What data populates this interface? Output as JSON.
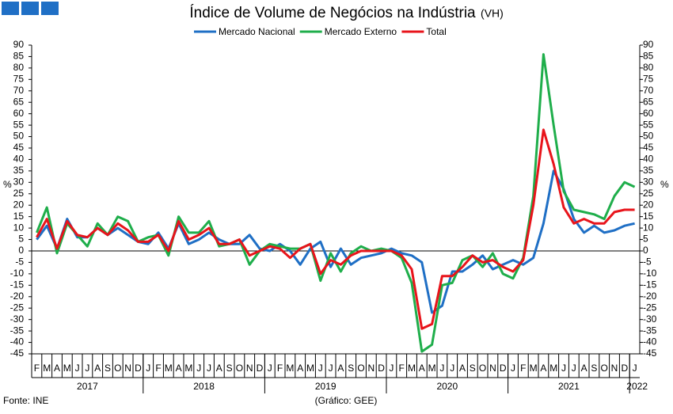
{
  "chart_data": {
    "type": "line",
    "title": "Índice de Volume de Negócios na Indústria",
    "subtitle": "(VH)",
    "y_label": "%",
    "y2_label": "%",
    "source": "Fonte: INE",
    "credit": "(Gráfico: GEE)",
    "categories": [
      "F",
      "M",
      "A",
      "M",
      "J",
      "J",
      "A",
      "S",
      "O",
      "N",
      "D",
      "J",
      "F",
      "M",
      "A",
      "M",
      "J",
      "J",
      "A",
      "S",
      "O",
      "N",
      "D",
      "J",
      "F",
      "M",
      "A",
      "M",
      "J",
      "J",
      "A",
      "S",
      "O",
      "N",
      "D",
      "J",
      "F",
      "M",
      "A",
      "M",
      "J",
      "J",
      "A",
      "S",
      "O",
      "N",
      "D",
      "J",
      "F",
      "M",
      "A",
      "M",
      "J",
      "J",
      "A",
      "S",
      "O",
      "N",
      "D",
      "J"
    ],
    "years": [
      "2017",
      "2018",
      "2019",
      "2020",
      "2021",
      "2022"
    ],
    "series": [
      {
        "name": "Mercado Nacional",
        "color": "#1f6fc5",
        "values": [
          5,
          11,
          1,
          14,
          6,
          6,
          10,
          7,
          10,
          7,
          4,
          3,
          8,
          1,
          12,
          3,
          5,
          8,
          5,
          3,
          3,
          7,
          1,
          0,
          3,
          0,
          -6,
          1,
          4,
          -7,
          1,
          -6,
          -3,
          -2,
          -1,
          1,
          -1,
          -2,
          -5,
          -27,
          -24,
          -9,
          -9,
          -6,
          -2,
          -8,
          -6,
          -4,
          -6,
          -3,
          12,
          35,
          27,
          14,
          8,
          11,
          8,
          9,
          11,
          12
        ]
      },
      {
        "name": "Mercado Externo",
        "color": "#1fae4b",
        "values": [
          8,
          19,
          -1,
          12,
          7,
          2,
          12,
          7,
          15,
          13,
          4,
          6,
          7,
          -2,
          15,
          8,
          8,
          13,
          2,
          3,
          5,
          -6,
          0,
          3,
          2,
          1,
          1,
          3,
          -13,
          -1,
          -9,
          -1,
          2,
          0,
          1,
          0,
          -3,
          -14,
          -44,
          -41,
          -15,
          -14,
          -4,
          -2,
          -7,
          -1,
          -10,
          -12,
          -3,
          24,
          86,
          55,
          26,
          18,
          17,
          16,
          14,
          24,
          30,
          28
        ]
      },
      {
        "name": "Total",
        "color": "#e8141b",
        "values": [
          6,
          14,
          1,
          13,
          7,
          6,
          10,
          7,
          12,
          9,
          4,
          4,
          7,
          0,
          13,
          5,
          7,
          10,
          3,
          3,
          5,
          -2,
          0,
          2,
          1,
          -3,
          1,
          3,
          -10,
          -4,
          -6,
          -2,
          0,
          0,
          0,
          0,
          -2,
          -8,
          -34,
          -32,
          -11,
          -11,
          -7,
          -2,
          -5,
          -4,
          -7,
          -9,
          -4,
          20,
          53,
          38,
          19,
          12,
          14,
          12,
          12,
          17,
          18,
          18
        ]
      }
    ],
    "ylim": [
      -45,
      90
    ],
    "yticks": [
      -45,
      -40,
      -35,
      -30,
      -25,
      -20,
      -15,
      -10,
      -5,
      0,
      5,
      10,
      15,
      20,
      25,
      30,
      35,
      40,
      45,
      50,
      55,
      60,
      65,
      70,
      75,
      80,
      85,
      90
    ],
    "y2lim": [
      -45,
      90
    ],
    "y2ticks": [
      -45,
      -40,
      -35,
      -30,
      -25,
      -20,
      -15,
      -10,
      -5,
      0,
      5,
      10,
      15,
      20,
      25,
      30,
      35,
      40,
      45,
      50,
      55,
      60,
      65,
      70,
      75,
      80,
      85,
      90
    ],
    "legend": "top",
    "grid": false
  }
}
